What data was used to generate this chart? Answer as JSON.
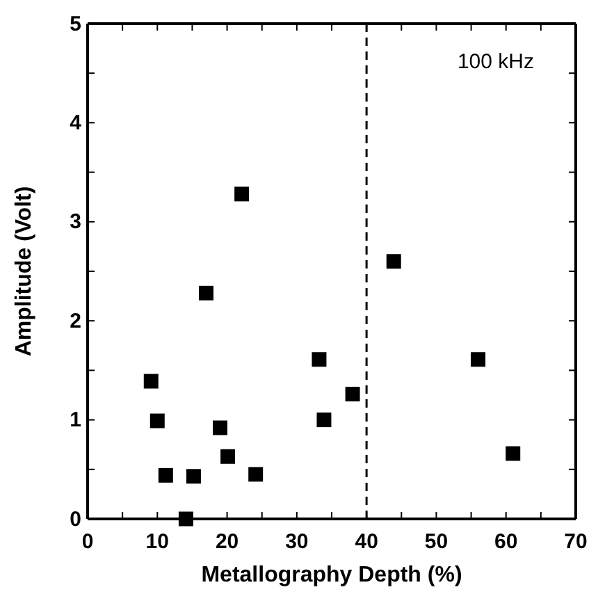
{
  "chart_data": {
    "type": "scatter",
    "xlabel": "Metallography Depth (%)",
    "ylabel": "Amplitude (Volt)",
    "x": [
      9.1,
      10,
      11.2,
      14.1,
      15.2,
      17.0,
      19.0,
      20.1,
      22.1,
      24.1,
      33.2,
      33.9,
      38.0,
      43.9,
      56.0,
      61.0
    ],
    "series": [
      {
        "color": "#000000",
        "values": [
          1.39,
          0.99,
          0.44,
          0.0,
          0.43,
          2.28,
          0.92,
          0.63,
          3.28,
          0.45,
          1.61,
          1.0,
          1.26,
          2.6,
          1.61,
          0.66
        ]
      }
    ],
    "marker": "square",
    "xlim": [
      0,
      70
    ],
    "ylim": [
      0,
      5
    ],
    "xticks": [
      0,
      {
        "value": 5,
        "label": null
      },
      10,
      {
        "value": 15,
        "label": null
      },
      20,
      {
        "value": 25,
        "label": null
      },
      30,
      {
        "value": 35,
        "label": null
      },
      40,
      {
        "value": 45,
        "label": null
      },
      50,
      {
        "value": 55,
        "label": null
      },
      60,
      {
        "value": 65,
        "label": null
      },
      70
    ],
    "yticks": [
      0,
      {
        "value": 0.5,
        "label": null
      },
      1,
      {
        "value": 1.5,
        "label": null
      },
      2,
      {
        "value": 2.5,
        "label": null
      },
      3,
      {
        "value": 3.5,
        "label": null
      },
      4,
      {
        "value": 4.5,
        "label": null
      },
      5
    ],
    "ref_lines": [
      {
        "axis": "x",
        "value": 40,
        "line_style": "dashed"
      }
    ],
    "annotations": [
      "100 kHz"
    ]
  }
}
